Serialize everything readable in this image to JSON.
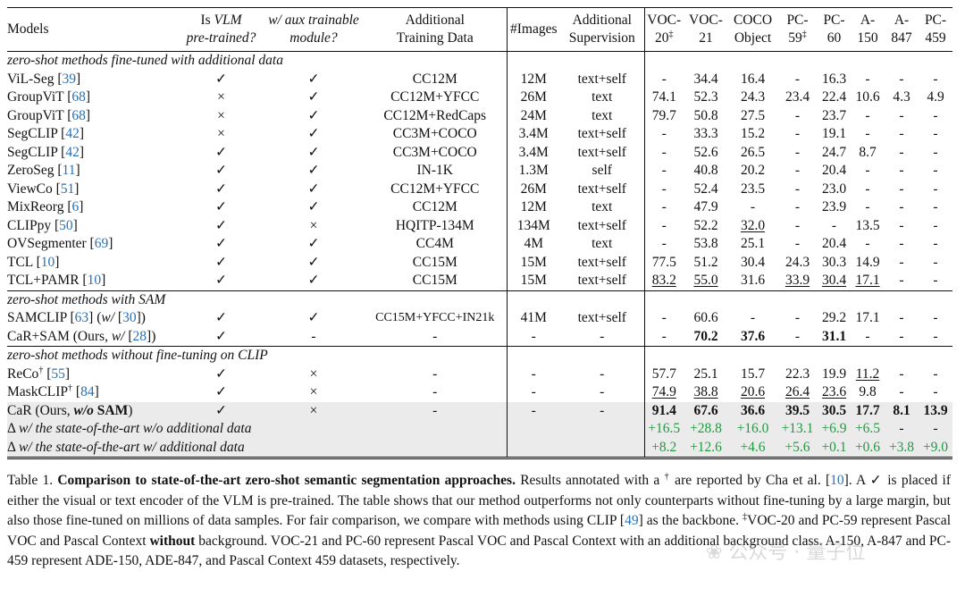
{
  "table": {
    "header": [
      [
        {
          "t": "Models"
        }
      ],
      [
        {
          "t": "Is "
        },
        {
          "t": "VLM",
          "s": "i"
        },
        {
          "br": true
        },
        {
          "t": "pre-trained?",
          "s": "i"
        }
      ],
      [
        {
          "t": "w/ aux trainable",
          "s": "i"
        },
        {
          "br": true
        },
        {
          "t": "module?",
          "s": "i"
        }
      ],
      [
        {
          "t": "Additional"
        },
        {
          "br": true
        },
        {
          "t": "Training Data"
        }
      ],
      [
        {
          "t": "#Images"
        }
      ],
      [
        {
          "t": "Additional"
        },
        {
          "br": true
        },
        {
          "t": "Supervision"
        }
      ],
      [
        {
          "t": "VOC-"
        },
        {
          "br": true
        },
        {
          "t": "20"
        },
        {
          "t": "‡",
          "s": "sup"
        }
      ],
      [
        {
          "t": "VOC-"
        },
        {
          "br": true
        },
        {
          "t": "21"
        }
      ],
      [
        {
          "t": "COCO"
        },
        {
          "br": true
        },
        {
          "t": "Object"
        }
      ],
      [
        {
          "t": "PC-"
        },
        {
          "br": true
        },
        {
          "t": "59"
        },
        {
          "t": "‡",
          "s": "sup"
        }
      ],
      [
        {
          "t": "PC-"
        },
        {
          "br": true
        },
        {
          "t": "60"
        }
      ],
      [
        {
          "t": "A-"
        },
        {
          "br": true
        },
        {
          "t": "150"
        }
      ],
      [
        {
          "t": "A-"
        },
        {
          "br": true
        },
        {
          "t": "847"
        }
      ],
      [
        {
          "t": "PC-"
        },
        {
          "br": true
        },
        {
          "t": "459"
        }
      ]
    ],
    "rows": [
      {
        "section": "zero-shot methods fine-tuned with additional data"
      },
      {
        "name": [
          {
            "t": "ViL-Seg ["
          },
          {
            "t": "39",
            "s": "ref"
          },
          {
            "t": "]"
          }
        ],
        "vlm": "✓",
        "aux": "✓",
        "data": "CC12M",
        "images": "12M",
        "sup": "text+self",
        "vals": [
          "-",
          "34.4",
          "16.4",
          "-",
          "16.3",
          "-",
          "-",
          "-"
        ]
      },
      {
        "name": [
          {
            "t": "GroupViT ["
          },
          {
            "t": "68",
            "s": "ref"
          },
          {
            "t": "]"
          }
        ],
        "vlm": "×",
        "aux": "✓",
        "data": "CC12M+YFCC",
        "images": "26M",
        "sup": "text",
        "vals": [
          "74.1",
          "52.3",
          "24.3",
          "23.4",
          "22.4",
          "10.6",
          "4.3",
          "4.9"
        ]
      },
      {
        "name": [
          {
            "t": "GroupViT ["
          },
          {
            "t": "68",
            "s": "ref"
          },
          {
            "t": "]"
          }
        ],
        "vlm": "×",
        "aux": "✓",
        "data": "CC12M+RedCaps",
        "images": "24M",
        "sup": "text",
        "vals": [
          "79.7",
          "50.8",
          "27.5",
          "-",
          "23.7",
          "-",
          "-",
          "-"
        ]
      },
      {
        "name": [
          {
            "t": "SegCLIP ["
          },
          {
            "t": "42",
            "s": "ref"
          },
          {
            "t": "]"
          }
        ],
        "vlm": "×",
        "aux": "✓",
        "data": "CC3M+COCO",
        "images": "3.4M",
        "sup": "text+self",
        "vals": [
          "-",
          "33.3",
          "15.2",
          "-",
          "19.1",
          "-",
          "-",
          "-"
        ]
      },
      {
        "name": [
          {
            "t": "SegCLIP ["
          },
          {
            "t": "42",
            "s": "ref"
          },
          {
            "t": "]"
          }
        ],
        "vlm": "✓",
        "aux": "✓",
        "data": "CC3M+COCO",
        "images": "3.4M",
        "sup": "text+self",
        "vals": [
          "-",
          "52.6",
          "26.5",
          "-",
          "24.7",
          "8.7",
          "-",
          "-"
        ]
      },
      {
        "name": [
          {
            "t": "ZeroSeg ["
          },
          {
            "t": "11",
            "s": "ref"
          },
          {
            "t": "]"
          }
        ],
        "vlm": "✓",
        "aux": "✓",
        "data": "IN-1K",
        "images": "1.3M",
        "sup": "self",
        "vals": [
          "-",
          "40.8",
          "20.2",
          "-",
          "20.4",
          "-",
          "-",
          "-"
        ]
      },
      {
        "name": [
          {
            "t": "ViewCo ["
          },
          {
            "t": "51",
            "s": "ref"
          },
          {
            "t": "]"
          }
        ],
        "vlm": "✓",
        "aux": "✓",
        "data": "CC12M+YFCC",
        "images": "26M",
        "sup": "text+self",
        "vals": [
          "-",
          "52.4",
          "23.5",
          "-",
          "23.0",
          "-",
          "-",
          "-"
        ]
      },
      {
        "name": [
          {
            "t": "MixReorg ["
          },
          {
            "t": "6",
            "s": "ref"
          },
          {
            "t": "]"
          }
        ],
        "vlm": "✓",
        "aux": "✓",
        "data": "CC12M",
        "images": "12M",
        "sup": "text",
        "vals": [
          "-",
          "47.9",
          "-",
          "-",
          "23.9",
          "-",
          "-",
          "-"
        ]
      },
      {
        "name": [
          {
            "t": "CLIPpy ["
          },
          {
            "t": "50",
            "s": "ref"
          },
          {
            "t": "]"
          }
        ],
        "vlm": "✓",
        "aux": "×",
        "data": "HQITP-134M",
        "images": "134M",
        "sup": "text+self",
        "vals": [
          "-",
          "52.2",
          "32.0",
          "-",
          "-",
          "13.5",
          "-",
          "-"
        ],
        "fmt": [
          "",
          "",
          "u",
          "",
          "",
          "",
          "",
          ""
        ]
      },
      {
        "name": [
          {
            "t": "OVSegmenter ["
          },
          {
            "t": "69",
            "s": "ref"
          },
          {
            "t": "]"
          }
        ],
        "vlm": "✓",
        "aux": "✓",
        "data": "CC4M",
        "images": "4M",
        "sup": "text",
        "vals": [
          "-",
          "53.8",
          "25.1",
          "-",
          "20.4",
          "-",
          "-",
          "-"
        ]
      },
      {
        "name": [
          {
            "t": "TCL ["
          },
          {
            "t": "10",
            "s": "ref"
          },
          {
            "t": "]"
          }
        ],
        "vlm": "✓",
        "aux": "✓",
        "data": "CC15M",
        "images": "15M",
        "sup": "text+self",
        "vals": [
          "77.5",
          "51.2",
          "30.4",
          "24.3",
          "30.3",
          "14.9",
          "-",
          "-"
        ]
      },
      {
        "name": [
          {
            "t": "TCL+PAMR ["
          },
          {
            "t": "10",
            "s": "ref"
          },
          {
            "t": "]"
          }
        ],
        "vlm": "✓",
        "aux": "✓",
        "data": "CC15M",
        "images": "15M",
        "sup": "text+self",
        "vals": [
          "83.2",
          "55.0",
          "31.6",
          "33.9",
          "30.4",
          "17.1",
          "-",
          "-"
        ],
        "fmt": [
          "u",
          "u",
          "",
          "u",
          "u",
          "u",
          "",
          ""
        ]
      },
      {
        "section": "zero-shot methods with SAM"
      },
      {
        "name": [
          {
            "t": "SAMCLIP ["
          },
          {
            "t": "63",
            "s": "ref"
          },
          {
            "t": "] ("
          },
          {
            "t": "w/",
            "s": "i"
          },
          {
            "t": " ["
          },
          {
            "t": "30",
            "s": "ref"
          },
          {
            "t": "])"
          }
        ],
        "vlm": "✓",
        "aux": "✓",
        "data": "CC15M+YFCC+IN21k",
        "images": "41M",
        "sup": "text+self",
        "vals": [
          "-",
          "60.6",
          "-",
          "-",
          "29.2",
          "17.1",
          "-",
          "-"
        ],
        "small_data": true
      },
      {
        "name": [
          {
            "t": "CaR+SAM (Ours, "
          },
          {
            "t": "w/",
            "s": "i"
          },
          {
            "t": " ["
          },
          {
            "t": "28",
            "s": "ref"
          },
          {
            "t": "])"
          }
        ],
        "vlm": "✓",
        "aux": "-",
        "data": "-",
        "images": "-",
        "sup": "-",
        "vals": [
          "-",
          "70.2",
          "37.6",
          "-",
          "31.1",
          "-",
          "-",
          "-"
        ],
        "fmt": [
          "",
          "b",
          "b",
          "",
          "b",
          "",
          "",
          ""
        ]
      },
      {
        "section": "zero-shot methods without fine-tuning on CLIP"
      },
      {
        "name": [
          {
            "t": "ReCo"
          },
          {
            "t": "†",
            "s": "sup"
          },
          {
            "t": " ["
          },
          {
            "t": "55",
            "s": "ref"
          },
          {
            "t": "]"
          }
        ],
        "vlm": "✓",
        "aux": "×",
        "data": "-",
        "images": "-",
        "sup": "-",
        "vals": [
          "57.7",
          "25.1",
          "15.7",
          "22.3",
          "19.9",
          "11.2",
          "-",
          "-"
        ],
        "fmt": [
          "",
          "",
          "",
          "",
          "",
          "u",
          "",
          ""
        ]
      },
      {
        "name": [
          {
            "t": "MaskCLIP"
          },
          {
            "t": "†",
            "s": "sup"
          },
          {
            "t": " ["
          },
          {
            "t": "84",
            "s": "ref"
          },
          {
            "t": "]"
          }
        ],
        "vlm": "✓",
        "aux": "×",
        "data": "-",
        "images": "-",
        "sup": "-",
        "vals": [
          "74.9",
          "38.8",
          "20.6",
          "26.4",
          "23.6",
          "9.8",
          "-",
          "-"
        ],
        "fmt": [
          "u",
          "u",
          "u",
          "u",
          "u",
          "",
          "",
          ""
        ]
      },
      {
        "highlight": true,
        "name": [
          {
            "t": "CaR (Ours, "
          },
          {
            "t": "w/o",
            "s": "b i"
          },
          {
            "t": " SAM",
            "s": "b"
          },
          {
            "t": ")"
          }
        ],
        "vlm": "✓",
        "aux": "×",
        "data": "-",
        "images": "-",
        "sup": "-",
        "vals": [
          "91.4",
          "67.6",
          "36.6",
          "39.5",
          "30.5",
          "17.7",
          "8.1",
          "13.9"
        ],
        "fmt": [
          "b",
          "b",
          "b",
          "b",
          "b",
          "b",
          "b",
          "b"
        ]
      },
      {
        "highlight": true,
        "delta": true,
        "name": [
          {
            "t": "Δ "
          },
          {
            "t": "w/ the state-of-the-art w/o additional data",
            "s": "i"
          }
        ],
        "vals": [
          "+16.5",
          "+28.8",
          "+16.0",
          "+13.1",
          "+6.9",
          "+6.5",
          "-",
          "-"
        ],
        "fmt": [
          "g",
          "g",
          "g",
          "g",
          "g",
          "g",
          "",
          ""
        ]
      },
      {
        "highlight": true,
        "delta": true,
        "last": true,
        "name": [
          {
            "t": "Δ "
          },
          {
            "t": "w/ the state-of-the-art w/ additional data",
            "s": "i"
          }
        ],
        "vals": [
          "+8.2",
          "+12.6",
          "+4.6",
          "+5.6",
          "+0.1",
          "+0.6",
          "+3.8",
          "+9.0"
        ],
        "fmt": [
          "g",
          "g",
          "g",
          "g",
          "g",
          "g",
          "g",
          "g"
        ]
      }
    ]
  },
  "caption": [
    {
      "t": "Table 1. "
    },
    {
      "t": "Comparison to state-of-the-art zero-shot semantic segmentation approaches.",
      "s": "b"
    },
    {
      "t": " Results annotated with a "
    },
    {
      "t": "†",
      "s": "sup"
    },
    {
      "t": " are reported by Cha et al. ["
    },
    {
      "t": "10",
      "s": "ref"
    },
    {
      "t": "].  A ✓ is placed if either the visual or text encoder of the VLM is pre-trained.  The table shows that our method outperforms not only counterparts without fine-tuning by a large margin, but also those fine-tuned on millions of data samples. For fair comparison, we compare with methods using CLIP ["
    },
    {
      "t": "49",
      "s": "ref"
    },
    {
      "t": "] as the backbone.  "
    },
    {
      "t": "‡",
      "s": "sup"
    },
    {
      "t": "VOC-20 and PC-59 represent Pascal VOC and Pascal Context "
    },
    {
      "t": "without",
      "s": "b"
    },
    {
      "t": " background. VOC-21 and PC-60 represent Pascal VOC and Pascal Context with an additional background class. A-150, A-847 and PC-459 represent ADE-150, ADE-847, and Pascal Context 459 datasets, respectively."
    }
  ],
  "watermark": "公众号 · 量子位",
  "colors": {
    "ref": "#2a6fb5",
    "delta": "#1f9a40",
    "highlight": "#ebebeb"
  }
}
